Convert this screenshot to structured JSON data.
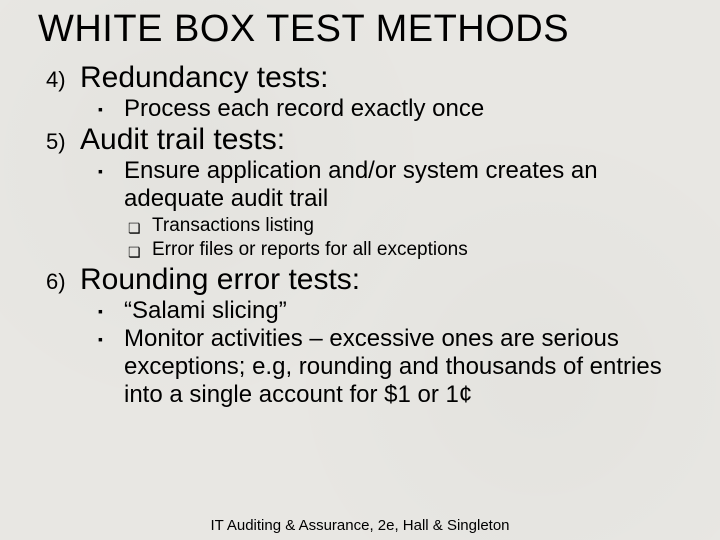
{
  "title": "WHITE BOX TEST METHODS",
  "items": [
    {
      "num": "4)",
      "label": "Redundancy tests:",
      "bullets": [
        {
          "text": "Process each record exactly once",
          "subs": []
        }
      ]
    },
    {
      "num": "5)",
      "label": "Audit trail tests:",
      "bullets": [
        {
          "text": "Ensure application and/or system creates an adequate audit trail",
          "subs": [
            "Transactions listing",
            "Error files or reports for all exceptions"
          ]
        }
      ]
    },
    {
      "num": "6)",
      "label": "Rounding error tests:",
      "bullets": [
        {
          "text": "“Salami slicing”",
          "subs": []
        },
        {
          "text": "Monitor activities – excessive ones are serious exceptions; e.g, rounding and thousands of entries into a single account for $1 or 1¢",
          "subs": []
        }
      ]
    }
  ],
  "footer": "IT Auditing & Assurance, 2e, Hall & Singleton",
  "style": {
    "background_color": "#e8e7e3",
    "text_color": "#000000",
    "title_fontsize": 38,
    "numlabel_fontsize": 30,
    "bullet_fontsize": 24,
    "sub_fontsize": 19,
    "footer_fontsize": 15,
    "bullet_glyph": "▪",
    "sub_glyph": "❏",
    "font_family": "Arial"
  }
}
